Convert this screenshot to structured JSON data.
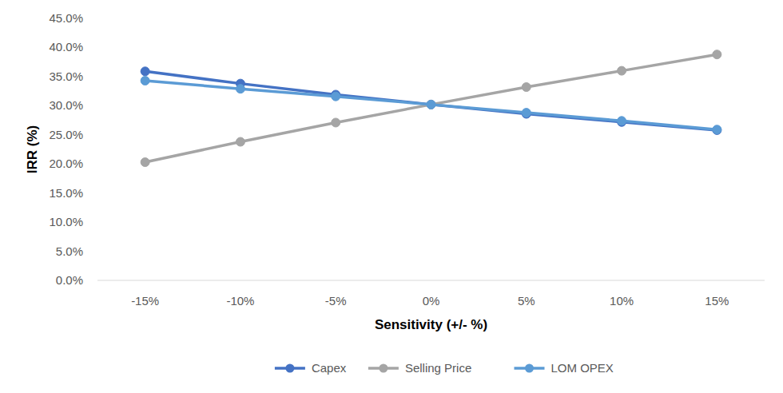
{
  "chart_data": {
    "type": "line",
    "x_label": "Sensitivity (+/- %)",
    "y_label": "IRR (%)",
    "categories": [
      "-15%",
      "-10%",
      "-5%",
      "0%",
      "5%",
      "10%",
      "15%"
    ],
    "series": [
      {
        "name": "Capex",
        "color": "#4472c4",
        "marker": "circle",
        "values": [
          35.9,
          33.8,
          31.9,
          30.2,
          28.6,
          27.2,
          25.8
        ]
      },
      {
        "name": "Selling Price",
        "color": "#a5a5a5",
        "marker": "circle",
        "values": [
          20.3,
          23.8,
          27.1,
          30.2,
          33.2,
          36.0,
          38.8
        ]
      },
      {
        "name": "LOM OPEX",
        "color": "#5b9bd5",
        "marker": "circle",
        "values": [
          34.3,
          32.9,
          31.6,
          30.2,
          28.8,
          27.4,
          25.9
        ]
      }
    ],
    "ylim": [
      0,
      45
    ],
    "yticks": [
      {
        "value": 0,
        "label": "0.0%"
      },
      {
        "value": 5,
        "label": "5.0%"
      },
      {
        "value": 10,
        "label": "10.0%"
      },
      {
        "value": 15,
        "label": "15.0%"
      },
      {
        "value": 20,
        "label": "20.0%"
      },
      {
        "value": 25,
        "label": "25.0%"
      },
      {
        "value": 30,
        "label": "30.0%"
      },
      {
        "value": 35,
        "label": "35.0%"
      },
      {
        "value": 40,
        "label": "40.0%"
      },
      {
        "value": 45,
        "label": "45.0%"
      }
    ],
    "grid": false,
    "legend": "bottom"
  }
}
